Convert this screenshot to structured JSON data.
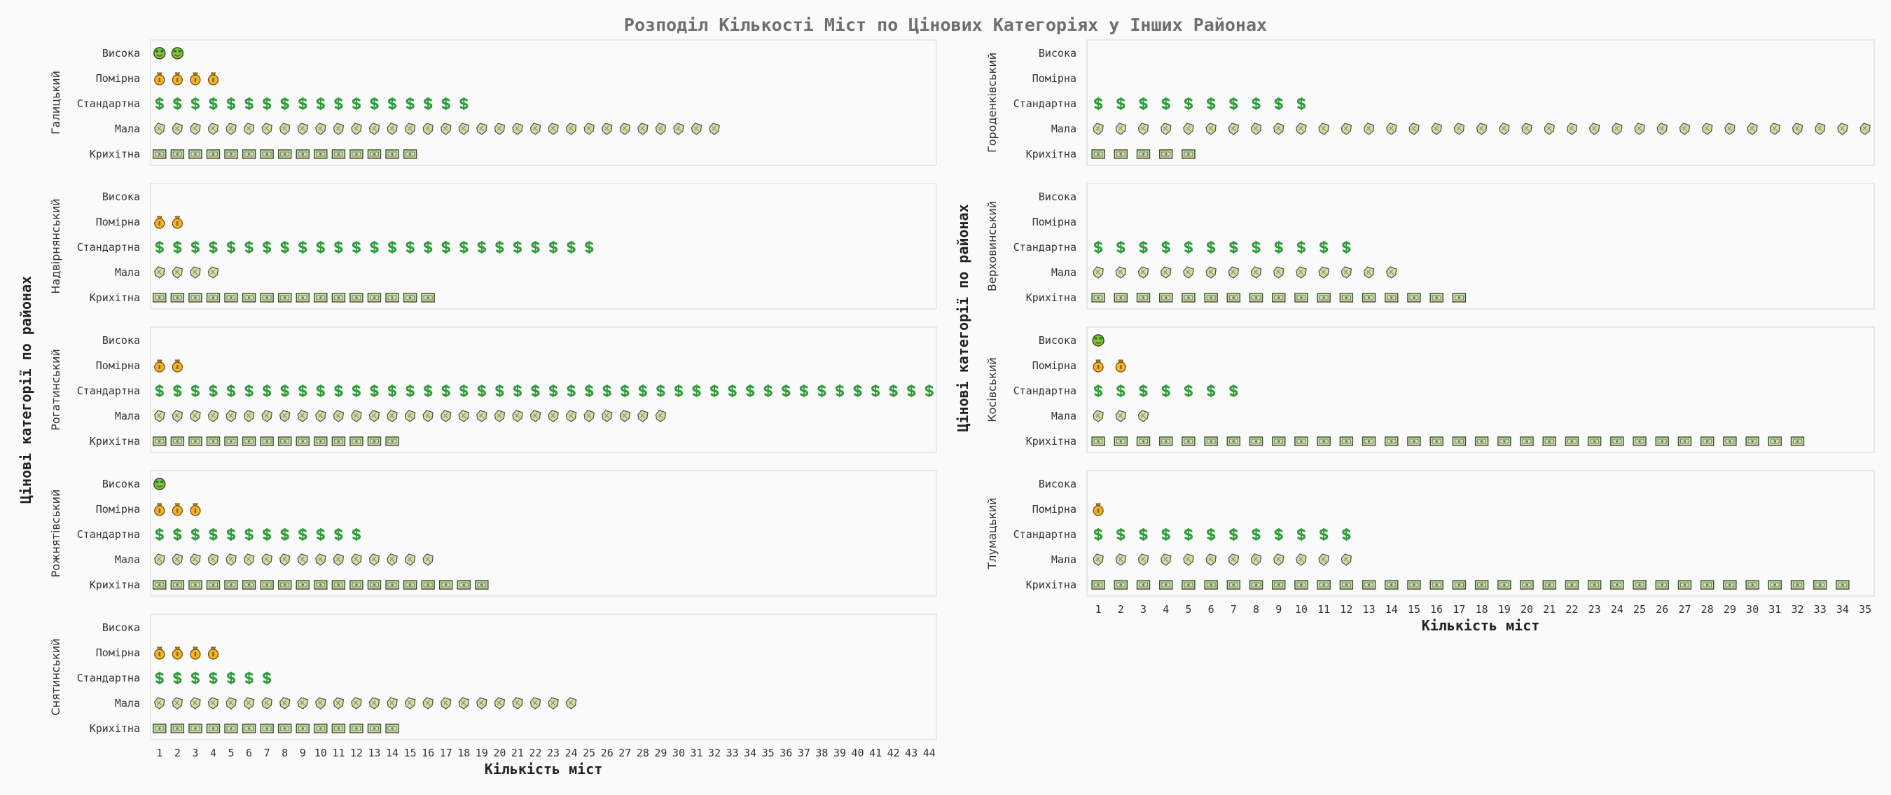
{
  "chart_data": {
    "type": "pictograph",
    "title": "Розподіл Кількості Міст по Цінових Категоріях у Інших Районах",
    "xlabel": "Кількість міст",
    "ylabel": "Цінові категорії по районах",
    "categories": [
      "Висока",
      "Помірна",
      "Стандартна",
      "Мала",
      "Крихітна"
    ],
    "icons": {
      "Висока": "money-face-icon",
      "Помірна": "money-bag-icon",
      "Стандартна": "dollar-sign-icon",
      "Мала": "coin-icon",
      "Крихітна": "banknote-icon"
    },
    "colors": {
      "Висока": "#7cc63f",
      "Помірна": "#f0b429",
      "Стандартна": "#2e9e3c",
      "Мала": "#d8dba6",
      "Крихітна": "#cfe0b4"
    },
    "columns": [
      {
        "x_ticks": [
          1,
          2,
          3,
          4,
          5,
          6,
          7,
          8,
          9,
          10,
          11,
          12,
          13,
          14,
          15,
          16,
          17,
          18,
          19,
          20,
          21,
          22,
          23,
          24,
          25,
          26,
          27,
          28,
          29,
          30,
          31,
          32,
          33,
          34,
          35,
          36,
          37,
          38,
          39,
          40,
          41,
          42,
          43,
          44
        ],
        "xlim": [
          0.5,
          44.4
        ],
        "panels": [
          {
            "district": "Галицький",
            "values": {
              "Висока": 2,
              "Помірна": 4,
              "Стандартна": 18,
              "Мала": 32,
              "Крихітна": 15
            }
          },
          {
            "district": "Надвірнянський",
            "values": {
              "Висока": 0,
              "Помірна": 2,
              "Стандартна": 25,
              "Мала": 4,
              "Крихітна": 16
            }
          },
          {
            "district": "Рогатинський",
            "values": {
              "Висока": 0,
              "Помірна": 2,
              "Стандартна": 44,
              "Мала": 29,
              "Крихітна": 14
            }
          },
          {
            "district": "Рожнятівський",
            "values": {
              "Висока": 1,
              "Помірна": 3,
              "Стандартна": 12,
              "Мала": 16,
              "Крихітна": 19
            }
          },
          {
            "district": "Снятинський",
            "values": {
              "Висока": 0,
              "Помірна": 4,
              "Стандартна": 7,
              "Мала": 24,
              "Крихітна": 14
            }
          }
        ]
      },
      {
        "x_ticks": [
          1,
          2,
          3,
          4,
          5,
          6,
          7,
          8,
          9,
          10,
          11,
          12,
          13,
          14,
          15,
          16,
          17,
          18,
          19,
          20,
          21,
          22,
          23,
          24,
          25,
          26,
          27,
          28,
          29,
          30,
          31,
          32,
          33,
          34,
          35
        ],
        "xlim": [
          0.5,
          35.4
        ],
        "panels": [
          {
            "district": "Городенківський",
            "values": {
              "Висока": 0,
              "Помірна": 0,
              "Стандартна": 10,
              "Мала": 35,
              "Крихітна": 5
            }
          },
          {
            "district": "Верховинський",
            "values": {
              "Висока": 0,
              "Помірна": 0,
              "Стандартна": 12,
              "Мала": 14,
              "Крихітна": 17
            }
          },
          {
            "district": "Косівський",
            "values": {
              "Висока": 1,
              "Помірна": 2,
              "Стандартна": 7,
              "Мала": 3,
              "Крихітна": 32
            }
          },
          {
            "district": "Тлумацький",
            "values": {
              "Висока": 0,
              "Помірна": 1,
              "Стандартна": 12,
              "Мала": 12,
              "Крихітна": 34
            }
          }
        ]
      }
    ]
  }
}
